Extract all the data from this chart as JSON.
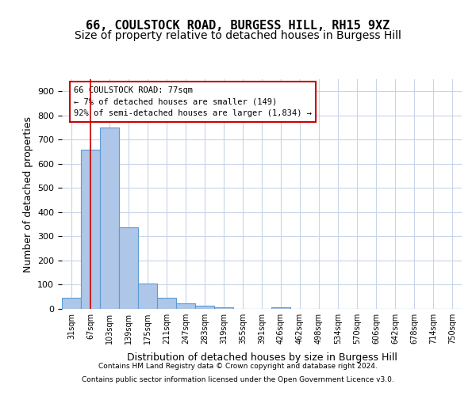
{
  "title1": "66, COULSTOCK ROAD, BURGESS HILL, RH15 9XZ",
  "title2": "Size of property relative to detached houses in Burgess Hill",
  "xlabel": "Distribution of detached houses by size in Burgess Hill",
  "ylabel": "Number of detached properties",
  "footer1": "Contains HM Land Registry data © Crown copyright and database right 2024.",
  "footer2": "Contains public sector information licensed under the Open Government Licence v3.0.",
  "bin_labels": [
    "31sqm",
    "67sqm",
    "103sqm",
    "139sqm",
    "175sqm",
    "211sqm",
    "247sqm",
    "283sqm",
    "319sqm",
    "355sqm",
    "391sqm",
    "426sqm",
    "462sqm",
    "498sqm",
    "534sqm",
    "570sqm",
    "606sqm",
    "642sqm",
    "678sqm",
    "714sqm",
    "750sqm"
  ],
  "bar_values": [
    47,
    660,
    750,
    338,
    105,
    47,
    22,
    12,
    8,
    0,
    0,
    5,
    0,
    0,
    0,
    0,
    0,
    0,
    0,
    0,
    0
  ],
  "bar_color": "#aec6e8",
  "bar_edge_color": "#5b9bd5",
  "red_line_x": 1.0,
  "annotation_text1": "66 COULSTOCK ROAD: 77sqm",
  "annotation_text2": "← 7% of detached houses are smaller (149)",
  "annotation_text3": "92% of semi-detached houses are larger (1,834) →",
  "annotation_box_color": "#ffffff",
  "annotation_box_edge": "#cc0000",
  "red_line_color": "#cc0000",
  "ylim": [
    0,
    950
  ],
  "yticks": [
    0,
    100,
    200,
    300,
    400,
    500,
    600,
    700,
    800,
    900
  ],
  "background_color": "#ffffff",
  "grid_color": "#c8d4e8",
  "title1_fontsize": 11,
  "title2_fontsize": 10,
  "xlabel_fontsize": 9,
  "ylabel_fontsize": 9
}
